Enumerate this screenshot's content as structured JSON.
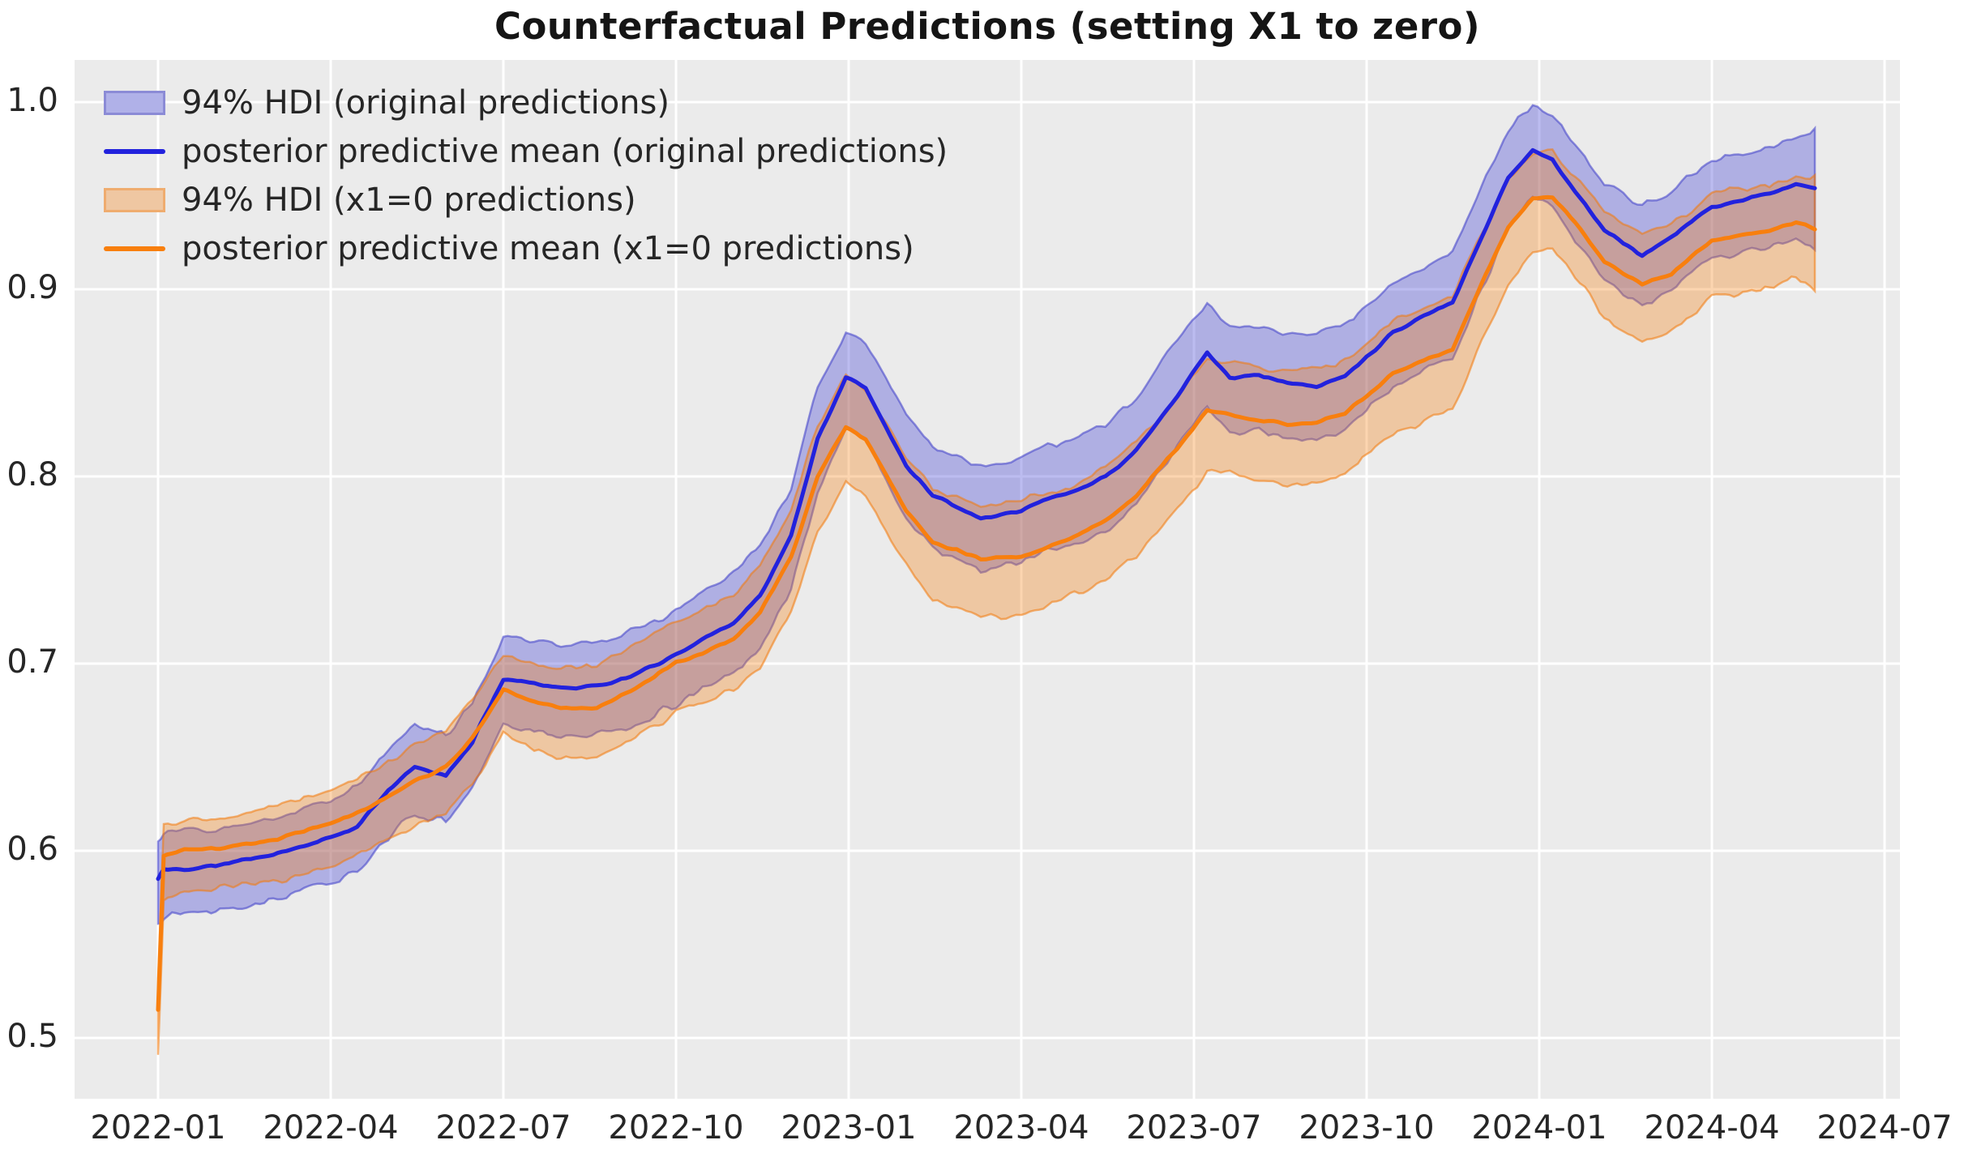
{
  "title": "Counterfactual Predictions (setting X1 to zero)",
  "legend": {
    "items": [
      {
        "label": "94% HDI (original predictions)",
        "type": "patch",
        "fill": "#b0b1e8",
        "edge": "#8b8bd6"
      },
      {
        "label": "posterior predictive mean (original predictions)",
        "type": "line",
        "color": "#2222dd"
      },
      {
        "label": "94% HDI (x1=0 predictions)",
        "type": "patch",
        "fill": "#efc7a2",
        "edge": "#efac6f"
      },
      {
        "label": "posterior predictive mean (x1=0 predictions)",
        "type": "line",
        "color": "#f87f0e"
      }
    ]
  },
  "axes": {
    "x_ticks": [
      "2022-01",
      "2022-04",
      "2022-07",
      "2022-10",
      "2023-01",
      "2023-04",
      "2023-07",
      "2023-10",
      "2024-01",
      "2024-04",
      "2024-07"
    ],
    "y_ticks": [
      0.5,
      0.6,
      0.7,
      0.8,
      0.9,
      1.0
    ]
  },
  "colors": {
    "plot_bg": "#ebebeb",
    "grid": "#ffffff",
    "blue_line": "#2222dd",
    "blue_band_fill": "rgba(80,80,216,0.38)",
    "blue_band_edge": "rgba(60,60,200,0.55)",
    "orange_line": "#f87f0e",
    "orange_band_fill": "rgba(247,126,14,0.33)",
    "orange_band_edge": "rgba(243,120,10,0.55)",
    "tick_text": "#262626"
  },
  "chart_data": {
    "type": "line",
    "title": "Counterfactual Predictions (setting X1 to zero)",
    "xlabel": "",
    "ylabel": "",
    "x_axis_range": [
      "2021-11-17",
      "2024-07-09"
    ],
    "y_axis_range": [
      0.465,
      1.023
    ],
    "grid": true,
    "legend_position": "upper left",
    "x_dates": [
      "2022-01-01",
      "2022-01-04",
      "2022-01-15",
      "2022-02-01",
      "2022-02-15",
      "2022-03-01",
      "2022-03-15",
      "2022-04-01",
      "2022-04-15",
      "2022-05-01",
      "2022-05-15",
      "2022-06-01",
      "2022-06-15",
      "2022-07-01",
      "2022-07-15",
      "2022-08-01",
      "2022-08-20",
      "2022-09-05",
      "2022-09-20",
      "2022-10-01",
      "2022-10-15",
      "2022-11-01",
      "2022-11-15",
      "2022-12-01",
      "2022-12-15",
      "2022-12-30",
      "2023-01-10",
      "2023-02-01",
      "2023-02-15",
      "2023-03-10",
      "2023-04-01",
      "2023-04-15",
      "2023-05-01",
      "2023-05-15",
      "2023-06-01",
      "2023-06-20",
      "2023-07-08",
      "2023-07-20",
      "2023-08-05",
      "2023-08-20",
      "2023-09-05",
      "2023-09-20",
      "2023-10-01",
      "2023-10-15",
      "2023-11-01",
      "2023-11-16",
      "2023-12-01",
      "2023-12-15",
      "2023-12-28",
      "2024-01-08",
      "2024-01-20",
      "2024-02-05",
      "2024-02-25",
      "2024-03-10",
      "2024-04-01",
      "2024-04-15",
      "2024-05-01",
      "2024-05-15",
      "2024-05-25"
    ],
    "series": [
      {
        "name": "posterior predictive mean (original predictions)",
        "kind": "line",
        "values": [
          0.585,
          0.59,
          0.59,
          0.592,
          0.595,
          0.598,
          0.602,
          0.607,
          0.613,
          0.632,
          0.645,
          0.64,
          0.658,
          0.692,
          0.69,
          0.687,
          0.688,
          0.692,
          0.699,
          0.705,
          0.713,
          0.722,
          0.736,
          0.768,
          0.82,
          0.853,
          0.847,
          0.806,
          0.79,
          0.778,
          0.782,
          0.788,
          0.793,
          0.8,
          0.814,
          0.84,
          0.866,
          0.853,
          0.854,
          0.85,
          0.848,
          0.854,
          0.864,
          0.877,
          0.886,
          0.893,
          0.928,
          0.96,
          0.974,
          0.969,
          0.952,
          0.932,
          0.918,
          0.928,
          0.944,
          0.947,
          0.951,
          0.956,
          0.954
        ]
      },
      {
        "name": "94% HDI (original predictions)",
        "kind": "band",
        "lo": [
          0.561,
          0.566,
          0.567,
          0.569,
          0.571,
          0.574,
          0.578,
          0.583,
          0.589,
          0.607,
          0.62,
          0.615,
          0.633,
          0.667,
          0.664,
          0.661,
          0.662,
          0.666,
          0.672,
          0.678,
          0.686,
          0.695,
          0.708,
          0.74,
          0.792,
          0.826,
          0.819,
          0.778,
          0.762,
          0.75,
          0.754,
          0.76,
          0.764,
          0.771,
          0.785,
          0.812,
          0.838,
          0.824,
          0.825,
          0.821,
          0.819,
          0.825,
          0.835,
          0.848,
          0.857,
          0.864,
          0.9,
          0.933,
          0.949,
          0.944,
          0.926,
          0.905,
          0.89,
          0.9,
          0.916,
          0.919,
          0.923,
          0.928,
          0.921
        ],
        "hi": [
          0.605,
          0.61,
          0.611,
          0.612,
          0.615,
          0.618,
          0.622,
          0.627,
          0.634,
          0.655,
          0.668,
          0.662,
          0.68,
          0.714,
          0.713,
          0.71,
          0.711,
          0.716,
          0.723,
          0.729,
          0.738,
          0.748,
          0.762,
          0.795,
          0.848,
          0.877,
          0.872,
          0.833,
          0.816,
          0.805,
          0.81,
          0.816,
          0.821,
          0.828,
          0.842,
          0.869,
          0.893,
          0.879,
          0.88,
          0.877,
          0.875,
          0.881,
          0.891,
          0.904,
          0.913,
          0.92,
          0.955,
          0.986,
          0.998,
          0.993,
          0.976,
          0.957,
          0.944,
          0.953,
          0.969,
          0.972,
          0.976,
          0.981,
          0.986
        ]
      },
      {
        "name": "posterior predictive mean (x1=0 predictions)",
        "kind": "line",
        "values": [
          0.515,
          0.597,
          0.601,
          0.601,
          0.603,
          0.606,
          0.61,
          0.615,
          0.62,
          0.629,
          0.637,
          0.645,
          0.66,
          0.686,
          0.68,
          0.676,
          0.676,
          0.684,
          0.693,
          0.701,
          0.706,
          0.713,
          0.727,
          0.757,
          0.8,
          0.827,
          0.82,
          0.782,
          0.765,
          0.756,
          0.757,
          0.762,
          0.769,
          0.776,
          0.79,
          0.812,
          0.835,
          0.833,
          0.83,
          0.828,
          0.829,
          0.834,
          0.843,
          0.855,
          0.862,
          0.868,
          0.903,
          0.933,
          0.948,
          0.949,
          0.936,
          0.915,
          0.903,
          0.908,
          0.926,
          0.929,
          0.931,
          0.936,
          0.932
        ]
      },
      {
        "name": "94% HDI (x1=0 predictions)",
        "kind": "band",
        "lo": [
          0.491,
          0.574,
          0.578,
          0.579,
          0.581,
          0.584,
          0.587,
          0.592,
          0.597,
          0.606,
          0.614,
          0.621,
          0.636,
          0.662,
          0.655,
          0.65,
          0.65,
          0.658,
          0.667,
          0.674,
          0.679,
          0.686,
          0.699,
          0.728,
          0.77,
          0.798,
          0.79,
          0.752,
          0.734,
          0.725,
          0.726,
          0.731,
          0.737,
          0.744,
          0.758,
          0.78,
          0.803,
          0.801,
          0.798,
          0.796,
          0.797,
          0.802,
          0.811,
          0.823,
          0.83,
          0.836,
          0.872,
          0.903,
          0.92,
          0.921,
          0.907,
          0.885,
          0.872,
          0.877,
          0.895,
          0.898,
          0.9,
          0.905,
          0.899
        ],
        "hi": [
          0.532,
          0.614,
          0.617,
          0.618,
          0.621,
          0.624,
          0.628,
          0.633,
          0.638,
          0.648,
          0.656,
          0.664,
          0.68,
          0.706,
          0.701,
          0.698,
          0.699,
          0.706,
          0.716,
          0.723,
          0.729,
          0.737,
          0.752,
          0.783,
          0.827,
          0.853,
          0.846,
          0.81,
          0.793,
          0.785,
          0.786,
          0.791,
          0.797,
          0.805,
          0.818,
          0.84,
          0.863,
          0.861,
          0.858,
          0.856,
          0.857,
          0.862,
          0.871,
          0.883,
          0.89,
          0.896,
          0.93,
          0.959,
          0.972,
          0.973,
          0.961,
          0.941,
          0.929,
          0.934,
          0.951,
          0.954,
          0.956,
          0.961,
          0.961
        ]
      }
    ]
  }
}
